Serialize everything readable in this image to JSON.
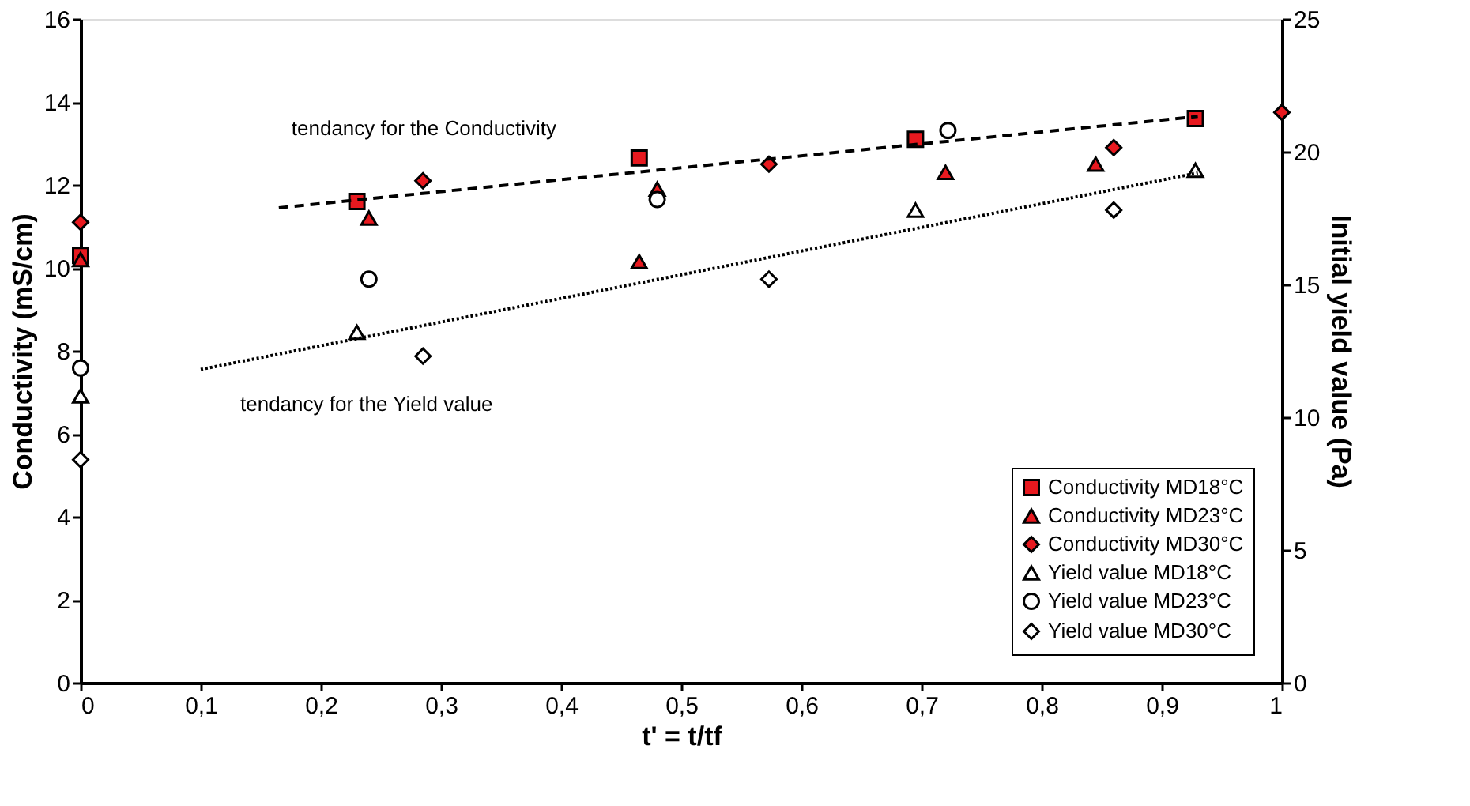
{
  "chart_data": {
    "type": "scatter",
    "xlabel": "t' = t/tf",
    "ylabel": "Conductivity (mS/cm)",
    "y2label": "Initial yield value (Pa)",
    "xlim": [
      0,
      1
    ],
    "xticks": [
      0,
      {
        "value": 0.1,
        "label": "0,1"
      },
      {
        "value": 0.2,
        "label": "0,2"
      },
      {
        "value": 0.3,
        "label": "0,3"
      },
      {
        "value": 0.4,
        "label": "0,4"
      },
      {
        "value": 0.5,
        "label": "0,5"
      },
      {
        "value": 0.6,
        "label": "0,6"
      },
      {
        "value": 0.7,
        "label": "0,7"
      },
      {
        "value": 0.8,
        "label": "0,8"
      },
      {
        "value": 0.9,
        "label": "0,9"
      },
      1
    ],
    "ylim": [
      0,
      16
    ],
    "yticks": [
      0,
      2,
      4,
      6,
      8,
      10,
      12,
      14,
      16
    ],
    "y2lim": [
      0,
      25
    ],
    "y2ticks": [
      0,
      5,
      10,
      15,
      20,
      25
    ],
    "grid": false,
    "legend": "bottom right",
    "series": [
      {
        "name": "Conductivity MD18°C",
        "color": "#e8191f",
        "marker": "square",
        "x": [
          0,
          0.23,
          0.465,
          0.695,
          0.928
        ],
        "values": [
          10.3,
          11.6,
          12.65,
          13.1,
          13.6
        ]
      },
      {
        "name": "Conductivity MD23°C",
        "color": "#e8191f",
        "marker": "triangle",
        "x": [
          0,
          0.24,
          0.465,
          0.48,
          0.72,
          0.845
        ],
        "values": [
          10.2,
          11.2,
          10.15,
          11.9,
          12.3,
          12.5
        ]
      },
      {
        "name": "Conductivity MD30°C",
        "color": "#e8191f",
        "marker": "diamond",
        "x": [
          0,
          0.285,
          0.573,
          0.86,
          1.0
        ],
        "values": [
          11.1,
          12.1,
          12.5,
          12.9,
          13.75
        ]
      },
      {
        "name": "Yield value MD18°C",
        "color": "#ffffff",
        "marker": "triangle",
        "axis": "y2",
        "x": [
          0,
          0.23,
          0.695,
          0.928
        ],
        "values": [
          10.8,
          13.2,
          17.8,
          19.3
        ]
      },
      {
        "name": "Yield value MD23°C",
        "color": "#ffffff",
        "marker": "circle",
        "axis": "y2",
        "x": [
          0,
          0.24,
          0.48,
          0.722
        ],
        "values": [
          11.85,
          15.2,
          18.2,
          20.8
        ]
      },
      {
        "name": "Yield value MD30°C",
        "color": "#ffffff",
        "marker": "diamond",
        "axis": "y2",
        "x": [
          0,
          0.285,
          0.573,
          0.86
        ],
        "values": [
          8.4,
          12.3,
          15.2,
          17.8
        ]
      },
      {
        "type": "line",
        "color": "#000000",
        "line_style": "dashed",
        "x": [
          0.165,
          0.93
        ],
        "values": [
          11.45,
          13.65
        ]
      },
      {
        "type": "line",
        "color": "#000000",
        "line_style": "dotted",
        "axis": "y2",
        "x": [
          0.1,
          0.93
        ],
        "values": [
          11.8,
          19.2
        ]
      }
    ],
    "annotations": [
      "tendancy for the Conductivity",
      "tendancy for the Yield value"
    ]
  }
}
